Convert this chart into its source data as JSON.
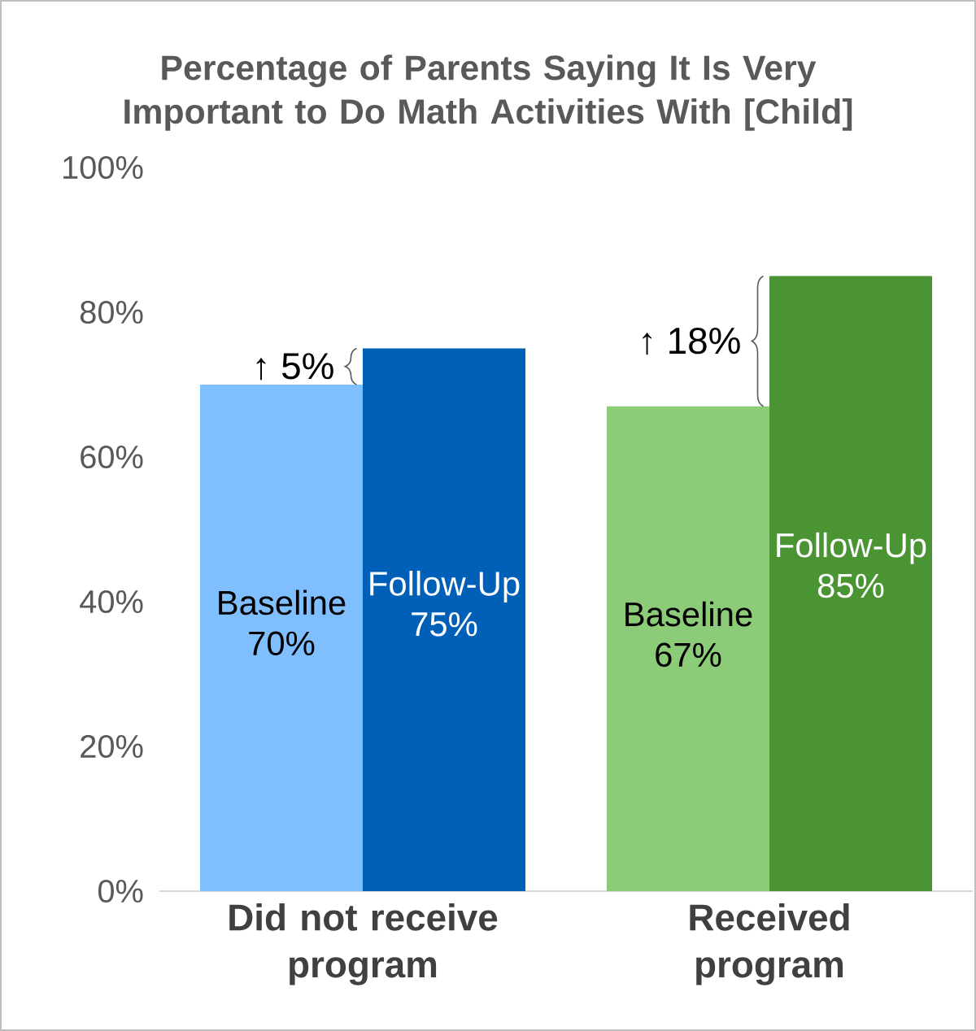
{
  "chart_data": {
    "type": "bar",
    "title": "Percentage of Parents Saying It Is Very Important to Do Math Activities With [Child]",
    "categories": [
      "Did not receive program",
      "Received program"
    ],
    "series": [
      {
        "name": "Baseline",
        "colors": [
          "#7fbfff",
          "#8ccc78"
        ],
        "values": [
          70,
          67
        ],
        "value_labels": [
          "70%",
          "67%"
        ]
      },
      {
        "name": "Follow-Up",
        "colors": [
          "#0060b8",
          "#4a9434"
        ],
        "values": [
          75,
          85
        ],
        "value_labels": [
          "75%",
          "85%"
        ]
      }
    ],
    "ylim": [
      0,
      100
    ],
    "yticks": [
      {
        "value": 0,
        "label": "0%"
      },
      {
        "value": 20,
        "label": "20%"
      },
      {
        "value": 40,
        "label": "40%"
      },
      {
        "value": 60,
        "label": "60%"
      },
      {
        "value": 80,
        "label": "80%"
      },
      {
        "value": 100,
        "label": "100%"
      }
    ],
    "annotations": [
      {
        "text": "↑ 5%",
        "x": "Did not receive program",
        "y": 75
      },
      {
        "text": "↑ 18%",
        "x": "Received program",
        "y": 85
      }
    ]
  }
}
